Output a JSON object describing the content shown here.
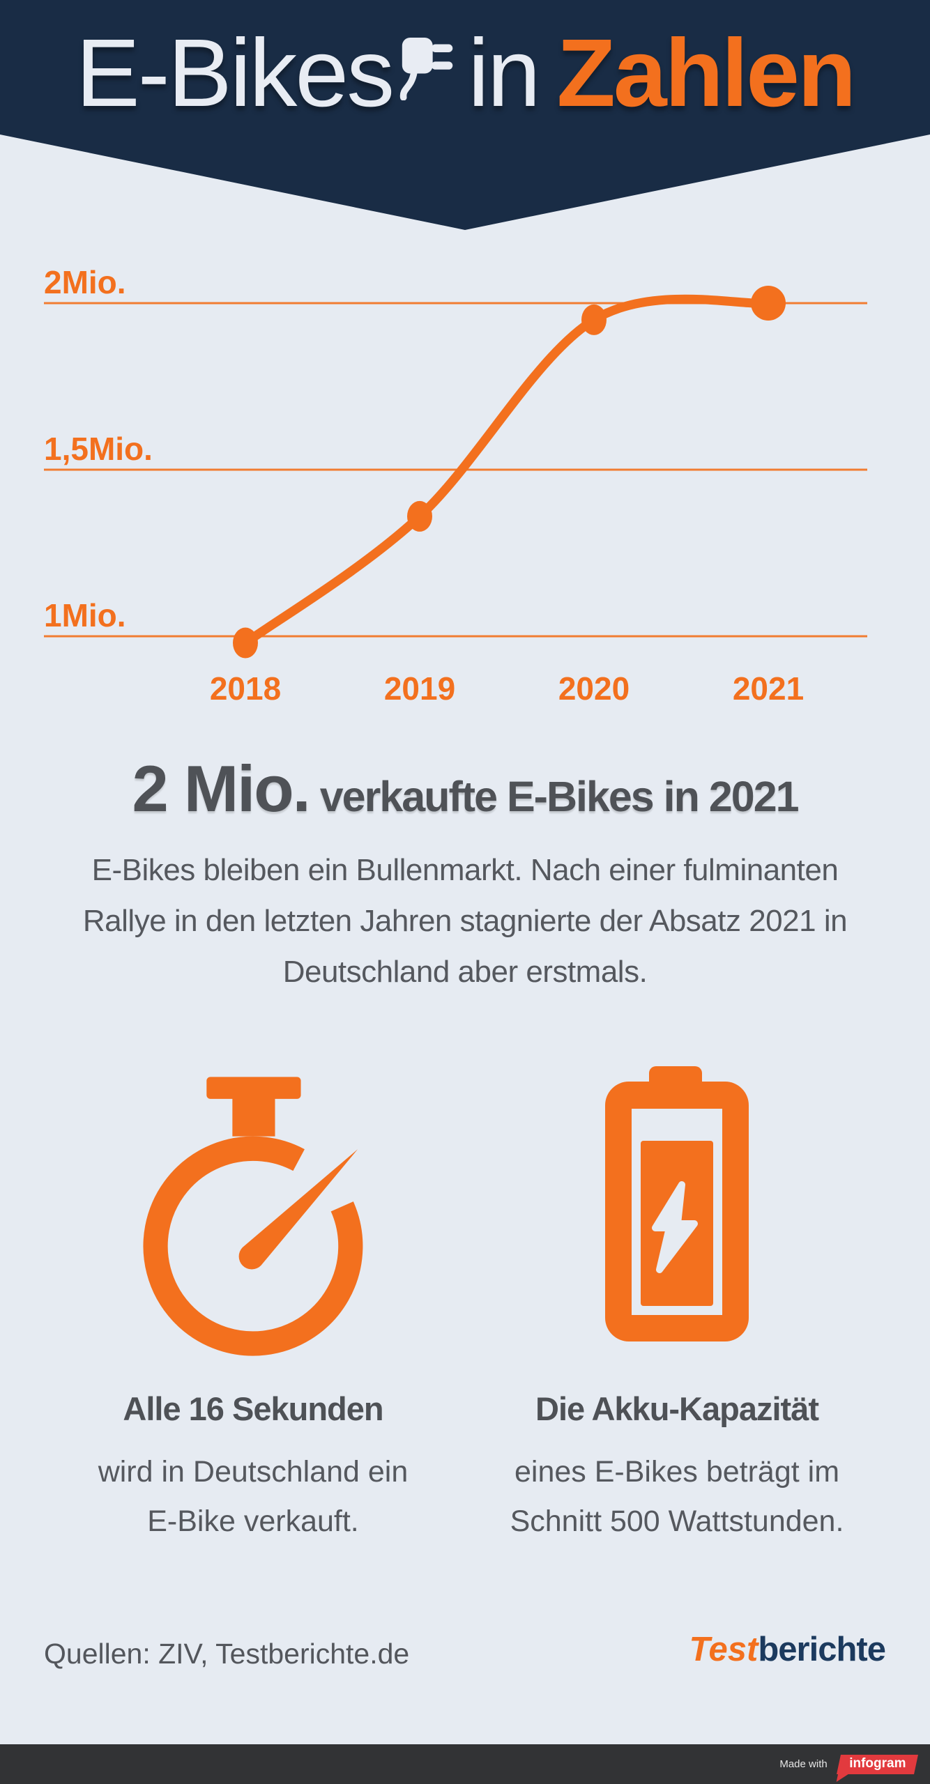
{
  "colors": {
    "navy": "#192c45",
    "background": "#e6ebf2",
    "orange": "#f3701e",
    "body_text": "#55585e",
    "heading_text": "#4e5156",
    "title_light": "#e8ecf3",
    "attribution_bar": "#323335",
    "infogram_red": "#e23a3e",
    "brand_navy": "#1c3a5e"
  },
  "header": {
    "title_word1": "E-Bikes",
    "title_word2": "in",
    "title_word3": "Zahlen",
    "plug_icon": "power-plug-icon"
  },
  "chart_data": {
    "type": "line",
    "title": "",
    "xlabel": "",
    "ylabel": "",
    "categories": [
      "2018",
      "2019",
      "2020",
      "2021"
    ],
    "values": [
      0.98,
      1.36,
      1.95,
      2.0
    ],
    "unit": "Mio.",
    "yticks": [
      {
        "value": 1,
        "label": "1Mio."
      },
      {
        "value": 1.5,
        "label": "1,5Mio."
      },
      {
        "value": 2,
        "label": "2Mio."
      }
    ],
    "ylim": [
      0.9,
      2.1
    ],
    "grid": "horizontal",
    "legend": "none",
    "line_color": "#f3701e",
    "point_color": "#f3701e"
  },
  "headline": {
    "big": "2 Mio.",
    "rest": " verkaufte E-Bikes in 2021"
  },
  "lede": {
    "lines": [
      "E-Bikes bleiben ein Bullenmarkt. Nach einer fulminanten",
      "Rallye in den letzten Jahren stagnierte der Absatz 2021 in",
      "Deutschland aber erstmals."
    ]
  },
  "facts": [
    {
      "icon": "stopwatch-icon",
      "heading": "Alle 16 Sekunden",
      "body_lines": [
        "wird in Deutschland ein",
        "E-Bike verkauft."
      ]
    },
    {
      "icon": "battery-icon",
      "heading": "Die Akku-Kapazität",
      "body_lines": [
        "eines E-Bikes beträgt im",
        "Schnitt 500 Wattstunden."
      ]
    }
  ],
  "footer": {
    "sources": "Quellen: ZIV, Testberichte.de",
    "brand_part1": "Test",
    "brand_part2": "berichte"
  },
  "attribution": {
    "made_with": "Made with",
    "brand": "infogram"
  }
}
